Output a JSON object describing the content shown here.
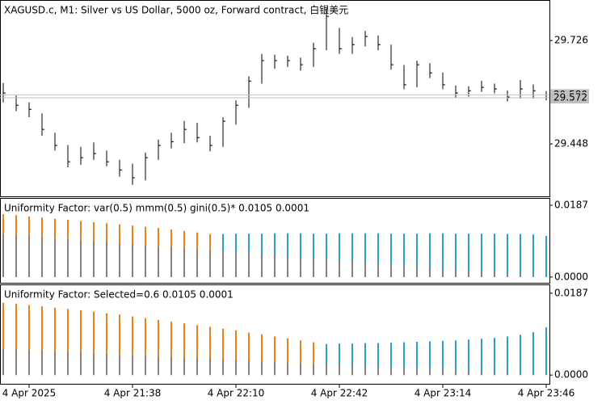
{
  "chart_data": [
    {
      "type": "ohlc",
      "title": "XAGUSD.c, M1:  Silver vs US Dollar, 5000 oz, Forward contract, 白银美元",
      "color": "#000000",
      "high": [
        29.612,
        29.578,
        29.56,
        29.53,
        29.478,
        29.445,
        29.44,
        29.452,
        29.43,
        29.405,
        29.395,
        29.425,
        29.46,
        29.478,
        29.51,
        29.505,
        29.47,
        29.52,
        29.565,
        29.63,
        29.69,
        29.688,
        29.685,
        29.68,
        29.72,
        29.815,
        29.76,
        29.735,
        29.752,
        29.74,
        29.715,
        29.66,
        29.672,
        29.665,
        29.64,
        29.605,
        29.603,
        29.618,
        29.61,
        29.592,
        29.62,
        29.608,
        29.59
      ],
      "low": [
        29.56,
        29.536,
        29.52,
        29.47,
        29.43,
        29.385,
        29.392,
        29.405,
        29.388,
        29.36,
        29.338,
        29.35,
        29.405,
        29.436,
        29.45,
        29.452,
        29.428,
        29.44,
        29.5,
        29.545,
        29.61,
        29.65,
        29.655,
        29.645,
        29.655,
        29.7,
        29.69,
        29.69,
        29.71,
        29.7,
        29.648,
        29.595,
        29.6,
        29.625,
        29.595,
        29.572,
        29.575,
        29.588,
        29.584,
        29.562,
        29.57,
        29.57,
        29.565
      ],
      "close": [
        29.585,
        29.552,
        29.541,
        29.487,
        29.444,
        29.4,
        29.411,
        29.422,
        29.4,
        29.378,
        29.357,
        29.411,
        29.444,
        29.454,
        29.487,
        29.465,
        29.444,
        29.509,
        29.552,
        29.617,
        29.672,
        29.672,
        29.672,
        29.661,
        29.704,
        29.791,
        29.704,
        29.715,
        29.737,
        29.715,
        29.661,
        29.607,
        29.661,
        29.639,
        29.607,
        29.585,
        29.591,
        29.6,
        29.596,
        29.574,
        29.596,
        29.591,
        29.572
      ],
      "ylim": [
        29.307,
        29.835
      ],
      "yticks": [
        29.448,
        29.726
      ],
      "price_lines": [
        {
          "value": 29.58,
          "label": "29.580"
        },
        29.572
      ]
    },
    {
      "type": "histogram",
      "title": "Uniformity Factor: var(0.5) mmm(0.5) gini(0.5)* 0.0105 0.0001",
      "series": [
        {
          "color": "#e8801e",
          "values": [
            0.0164,
            0.0161,
            0.0158,
            0.0155,
            0.0152,
            0.0149,
            0.0146,
            0.0143,
            0.014,
            0.0137,
            0.0134,
            0.0131,
            0.0128,
            0.0124,
            0.012,
            0.0116,
            0.0112,
            null,
            null,
            null,
            null,
            null,
            null,
            null,
            null,
            null,
            null,
            null,
            null,
            null,
            null,
            null,
            null,
            null,
            null,
            null,
            null,
            null,
            null,
            null,
            null,
            null,
            null
          ]
        },
        {
          "color": "#2b9ec8",
          "values": [
            null,
            null,
            null,
            null,
            null,
            null,
            null,
            null,
            null,
            null,
            null,
            null,
            null,
            null,
            null,
            null,
            null,
            0.0112,
            0.0113,
            0.0113,
            0.0113,
            0.0114,
            0.0114,
            0.0114,
            0.0113,
            0.0113,
            0.0114,
            0.0114,
            0.0114,
            0.0114,
            0.0113,
            0.0113,
            0.0113,
            0.0114,
            0.0114,
            0.0113,
            0.0113,
            0.0113,
            0.0113,
            0.0112,
            0.0112,
            0.0111,
            0.0107
          ]
        },
        {
          "color": "#8a7e7a",
          "values": [
            0.0111,
            0.0108,
            0.0106,
            0.0103,
            0.01,
            0.0098,
            0.0095,
            0.0093,
            0.009,
            0.0087,
            0.0085,
            0.0082,
            0.0079,
            0.0077,
            0.0074,
            0.0071,
            0.0069,
            0.0066,
            0.0063,
            0.0061,
            0.0058,
            0.0056,
            0.0053,
            0.005,
            0.0048,
            0.0045,
            0.0042,
            0.004,
            0.0037,
            0.0034,
            0.0032,
            0.0029,
            0.0026,
            0.0024,
            0.0021,
            0.0019,
            0.0016,
            0.0013,
            0.0011,
            0.0008,
            0.0005,
            0.0003,
            0
          ]
        }
      ],
      "ylim": [
        -0.0015,
        0.0206
      ],
      "yticks": [
        {
          "value": 0,
          "label": "0.0000"
        },
        0.0187
      ]
    },
    {
      "type": "histogram",
      "title": "Uniformity Factor: Selected=0.6 0.0105 0.0001",
      "series": [
        {
          "color": "#e8801e",
          "values": [
            0.0165,
            0.0163,
            0.016,
            0.0157,
            0.0154,
            0.0151,
            0.0148,
            0.0145,
            0.0141,
            0.0138,
            0.0134,
            0.013,
            0.0126,
            0.0122,
            0.0118,
            0.0114,
            0.011,
            0.0106,
            0.0102,
            0.0097,
            0.0093,
            0.0088,
            0.0084,
            0.0079,
            0.0075,
            null,
            null,
            null,
            null,
            null,
            null,
            null,
            null,
            null,
            null,
            null,
            null,
            null,
            null,
            null,
            null,
            null,
            null
          ]
        },
        {
          "color": "#2b9ec8",
          "values": [
            null,
            null,
            null,
            null,
            null,
            null,
            null,
            null,
            null,
            null,
            null,
            null,
            null,
            null,
            null,
            null,
            null,
            null,
            null,
            null,
            null,
            null,
            null,
            null,
            null,
            0.0071,
            0.0072,
            0.0072,
            0.0073,
            0.0073,
            0.0074,
            0.0075,
            0.0076,
            0.0077,
            0.0078,
            0.0079,
            0.0081,
            0.0083,
            0.0085,
            0.0088,
            0.0092,
            0.0098,
            0.0109
          ]
        },
        {
          "color": "#8a7e7a",
          "values": [
            0.0059,
            0.0058,
            0.0056,
            0.0055,
            0.0053,
            0.0052,
            0.0051,
            0.0049,
            0.0048,
            0.0046,
            0.0045,
            0.0044,
            0.0042,
            0.0041,
            0.0039,
            0.0038,
            0.0037,
            0.0035,
            0.0034,
            0.0032,
            0.0031,
            0.003,
            0.0028,
            0.0027,
            0.0025,
            0.0024,
            0.0023,
            0.0021,
            0.002,
            0.0018,
            0.0017,
            0.0015,
            0.0014,
            0.0013,
            0.0011,
            0.001,
            0.0008,
            0.0007,
            0.0006,
            0.0004,
            0.0003,
            0.0001,
            0
          ]
        }
      ],
      "ylim": [
        -0.002,
        0.0207
      ],
      "yticks": [
        {
          "value": 0,
          "label": "0.0000"
        },
        0.0187
      ],
      "categories": [
        null,
        null,
        "4 Apr 2025",
        null,
        null,
        null,
        null,
        null,
        null,
        null,
        "4 Apr 21:38",
        null,
        null,
        null,
        null,
        null,
        null,
        null,
        "4 Apr 22:10",
        null,
        null,
        null,
        null,
        null,
        null,
        null,
        "4 Apr 22:42",
        null,
        null,
        null,
        null,
        null,
        null,
        null,
        "4 Apr 23:14",
        null,
        null,
        null,
        null,
        null,
        null,
        null,
        "4 Apr 23:46"
      ]
    }
  ]
}
